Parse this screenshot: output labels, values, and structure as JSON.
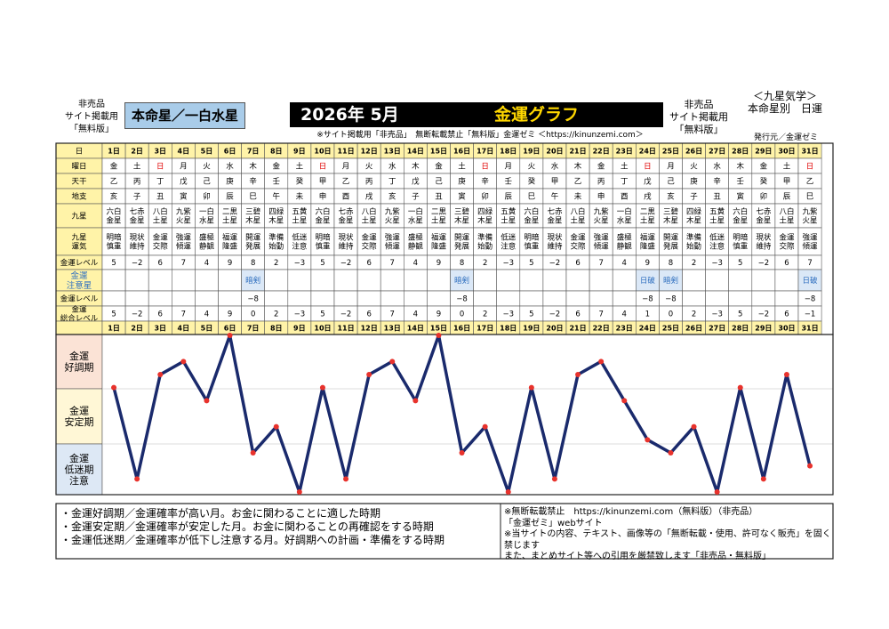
{
  "header": {
    "left_lines": [
      "非売品",
      "サイト掲載用",
      "「無料版」"
    ],
    "star": "本命星／一白水星",
    "year_month": "2026年 5月",
    "title": "金運グラフ",
    "notice": "※サイト掲載用「非売品」　無断転載禁止「無料版」金運ゼミ ＜https://kinunzemi.com＞",
    "right_lines": [
      "非売品",
      "サイト掲載用",
      "「無料版」"
    ],
    "right_title_lines": [
      "＜九星気学＞",
      "本命星別　日運"
    ],
    "publisher": "発行元／金運ゼミ"
  },
  "row_labels": {
    "day": "日",
    "weekday": "曜日",
    "tenkan": "天干",
    "chishi": "地支",
    "kyusei": "九星",
    "unki": "九星\n運気",
    "level": "金運レベル",
    "caution": "金運\n注意星",
    "caution_level": "金運レベル",
    "total": "金運\n総合レベル"
  },
  "days": [
    "1日",
    "2日",
    "3日",
    "4日",
    "5日",
    "6日",
    "7日",
    "8日",
    "9日",
    "10日",
    "11日",
    "12日",
    "13日",
    "14日",
    "15日",
    "16日",
    "17日",
    "18日",
    "19日",
    "20日",
    "21日",
    "22日",
    "23日",
    "24日",
    "25日",
    "26日",
    "27日",
    "28日",
    "29日",
    "30日",
    "31日"
  ],
  "weekdays": [
    "金",
    "土",
    "日",
    "月",
    "火",
    "水",
    "木",
    "金",
    "土",
    "日",
    "月",
    "火",
    "水",
    "木",
    "金",
    "土",
    "日",
    "月",
    "火",
    "水",
    "木",
    "金",
    "土",
    "日",
    "月",
    "火",
    "水",
    "木",
    "金",
    "土",
    "日"
  ],
  "tenkan": [
    "乙",
    "丙",
    "丁",
    "戊",
    "己",
    "庚",
    "辛",
    "壬",
    "癸",
    "甲",
    "乙",
    "丙",
    "丁",
    "戊",
    "己",
    "庚",
    "辛",
    "壬",
    "癸",
    "甲",
    "乙",
    "丙",
    "丁",
    "戊",
    "己",
    "庚",
    "辛",
    "壬",
    "癸",
    "甲",
    "乙"
  ],
  "chishi": [
    "亥",
    "子",
    "丑",
    "寅",
    "卯",
    "辰",
    "巳",
    "午",
    "未",
    "申",
    "酉",
    "戌",
    "亥",
    "子",
    "丑",
    "寅",
    "卯",
    "辰",
    "巳",
    "午",
    "未",
    "申",
    "酉",
    "戌",
    "亥",
    "子",
    "丑",
    "寅",
    "卯",
    "辰",
    "巳"
  ],
  "kyusei": [
    "六白\n金星",
    "七赤\n金星",
    "八白\n土星",
    "九紫\n火星",
    "一白\n水星",
    "二黒\n土星",
    "三碧\n木星",
    "四緑\n木星",
    "五黄\n土星",
    "六白\n金星",
    "七赤\n金星",
    "八白\n土星",
    "九紫\n火星",
    "一白\n水星",
    "二黒\n土星",
    "三碧\n木星",
    "四緑\n木星",
    "五黄\n土星",
    "六白\n金星",
    "七赤\n金星",
    "八白\n土星",
    "九紫\n火星",
    "一白\n水星",
    "二黒\n土星",
    "三碧\n木星",
    "四緑\n木星",
    "五黄\n土星",
    "六白\n金星",
    "七赤\n金星",
    "八白\n土星",
    "九紫\n火星"
  ],
  "unki": [
    "明暗\n慎重",
    "現状\n維持",
    "金運\n交際",
    "強運\n傾運",
    "盛極\n静観",
    "福運\n隆盛",
    "開運\n発展",
    "準備\n始動",
    "低迷\n注意",
    "明暗\n慎重",
    "現状\n維持",
    "金運\n交際",
    "強運\n傾運",
    "盛極\n静観",
    "福運\n隆盛",
    "開運\n発展",
    "準備\n始動",
    "低迷\n注意",
    "明暗\n慎重",
    "現状\n維持",
    "金運\n交際",
    "強運\n傾運",
    "盛極\n静観",
    "福運\n隆盛",
    "開運\n発展",
    "準備\n始動",
    "低迷\n注意",
    "明暗\n慎重",
    "現状\n維持",
    "金運\n交際",
    "強運\n傾運"
  ],
  "level": [
    "5",
    "−2",
    "6",
    "7",
    "4",
    "9",
    "8",
    "2",
    "−3",
    "5",
    "−2",
    "6",
    "7",
    "4",
    "9",
    "8",
    "2",
    "−3",
    "5",
    "−2",
    "6",
    "7",
    "4",
    "9",
    "8",
    "2",
    "−3",
    "5",
    "−2",
    "6",
    "7"
  ],
  "caution_star": [
    "",
    "",
    "",
    "",
    "",
    "",
    "暗剣",
    "",
    "",
    "",
    "",
    "",
    "",
    "",
    "",
    "暗剣",
    "",
    "",
    "",
    "",
    "",
    "",
    "",
    "日破",
    "暗剣",
    "",
    "",
    "",
    "",
    "",
    "日破"
  ],
  "caution_level": [
    "",
    "",
    "",
    "",
    "",
    "",
    "−8",
    "",
    "",
    "",
    "",
    "",
    "",
    "",
    "",
    "−8",
    "",
    "",
    "",
    "",
    "",
    "",
    "",
    "−8",
    "−8",
    "",
    "",
    "",
    "",
    "",
    "−8"
  ],
  "total": [
    "5",
    "−2",
    "6",
    "7",
    "4",
    "9",
    "0",
    "2",
    "−3",
    "5",
    "−2",
    "6",
    "7",
    "4",
    "9",
    "0",
    "2",
    "−3",
    "5",
    "−2",
    "6",
    "7",
    "4",
    "1",
    "0",
    "2",
    "−3",
    "5",
    "−2",
    "6",
    "−1"
  ],
  "bands": {
    "good": "金運\n好調期",
    "stable": "金運\n安定期",
    "low": "金運\n低迷期\n注意"
  },
  "colors": {
    "header_fill": "#fff3a8",
    "sunday": "#e00000",
    "caution_text": "#2f6fbf",
    "caution_fill": "#dbe8f7",
    "band_good": "#fbe3d6",
    "band_stable": "#fff7d6",
    "band_low": "#dde8f5",
    "line": "#1a2a6c",
    "point": "#e8322c"
  },
  "chart_data": {
    "type": "line",
    "x": [
      1,
      2,
      3,
      4,
      5,
      6,
      7,
      8,
      9,
      10,
      11,
      12,
      13,
      14,
      15,
      16,
      17,
      18,
      19,
      20,
      21,
      22,
      23,
      24,
      25,
      26,
      27,
      28,
      29,
      30,
      31
    ],
    "series": [
      {
        "values": [
          5,
          -2,
          6,
          7,
          4,
          9,
          0,
          2,
          -3,
          5,
          -2,
          6,
          7,
          4,
          9,
          0,
          2,
          -3,
          5,
          -2,
          6,
          7,
          4,
          1,
          0,
          2,
          -3,
          5,
          -2,
          6,
          -1
        ]
      }
    ],
    "ylim": [
      -3,
      9
    ],
    "grid": false
  },
  "notes_left": [
    "・金運好調期／金運確率が高い月。お金に関わることに適した時期",
    "・金運安定期／金運確率が安定した月。お金に関わることの再確認をする時期",
    "・金運低迷期／金運確率が低下し注意する月。好調期への計画・準備をする時期"
  ],
  "notes_right": [
    "※無断転載禁止　https://kinunzemi.com（無料版）（非売品）",
    "「金運ゼミ」webサイト",
    "※当サイトの内容、テキスト、画像等の「無断転載・使用、許可なく販売」を固く禁じます",
    "また、まとめサイト等への引用を厳禁致します「非売品・無料版」"
  ]
}
